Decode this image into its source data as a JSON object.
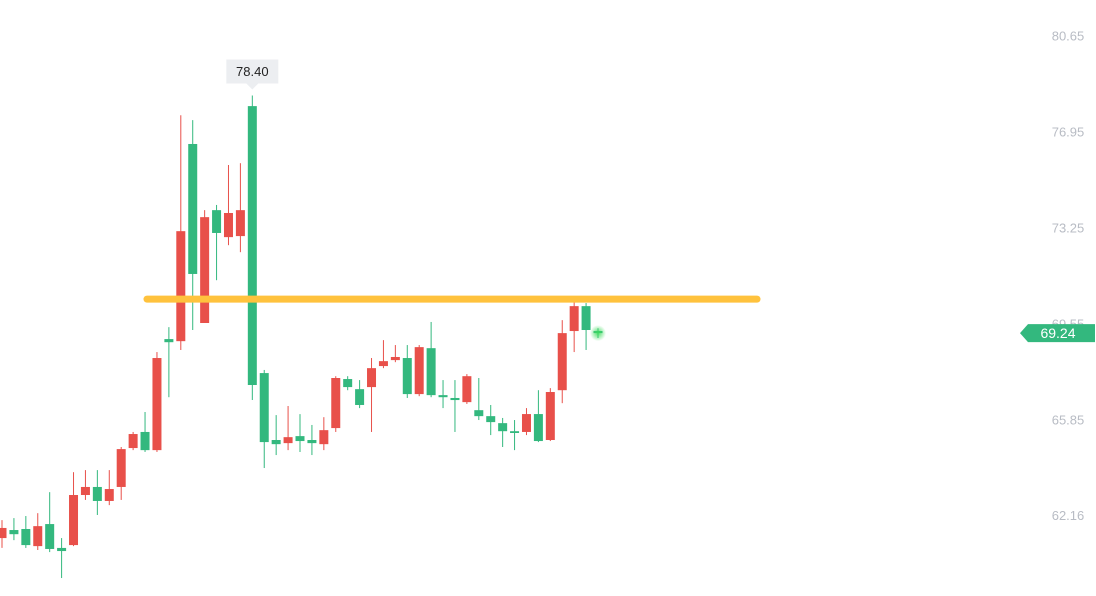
{
  "chart_data": {
    "type": "candlestick",
    "ylim": [
      59.3,
      82.08
    ],
    "yticks": [
      80.65,
      76.95,
      73.25,
      69.55,
      65.85,
      62.16
    ],
    "up_color": "#e8504a",
    "down_color": "#33b87e",
    "open": [
      61.34,
      61.65,
      61.69,
      61.03,
      61.88,
      60.96,
      61.07,
      63.0,
      63.31,
      62.77,
      63.31,
      64.81,
      65.43,
      64.73,
      69.01,
      68.93,
      76.53,
      69.63,
      73.98,
      72.94,
      72.98,
      77.99,
      67.7,
      65.12,
      65.0,
      65.27,
      65.12,
      64.96,
      65.58,
      67.47,
      67.08,
      67.16,
      67.97,
      68.2,
      68.28,
      66.89,
      68.66,
      66.85,
      66.74,
      66.58,
      66.27,
      66.04,
      65.77,
      65.46,
      65.43,
      66.12,
      65.12,
      67.04,
      69.32,
      70.28,
      69.32
    ],
    "high": [
      62.03,
      62.11,
      62.19,
      62.3,
      63.11,
      61.34,
      63.88,
      63.96,
      63.96,
      63.96,
      64.85,
      65.43,
      66.2,
      68.51,
      69.47,
      77.64,
      77.45,
      73.98,
      74.18,
      75.72,
      75.79,
      78.4,
      67.82,
      66.08,
      66.43,
      66.12,
      65.7,
      66.0,
      67.58,
      67.58,
      67.43,
      68.28,
      68.97,
      68.78,
      68.78,
      68.78,
      69.67,
      67.43,
      67.43,
      67.66,
      67.51,
      66.47,
      65.97,
      65.89,
      66.35,
      67.04,
      67.12,
      69.74,
      70.44,
      70.4,
      69.43
    ],
    "low": [
      60.96,
      61.26,
      60.96,
      60.88,
      60.8,
      59.8,
      61.03,
      62.81,
      62.23,
      62.61,
      62.81,
      64.73,
      64.66,
      64.66,
      66.77,
      68.59,
      69.36,
      69.63,
      71.28,
      72.63,
      72.36,
      66.66,
      64.04,
      64.54,
      64.73,
      64.66,
      64.54,
      64.73,
      65.43,
      67.04,
      66.35,
      65.43,
      67.89,
      68.12,
      66.74,
      66.81,
      66.77,
      66.35,
      65.43,
      66.51,
      65.89,
      65.31,
      64.85,
      64.73,
      65.31,
      65.04,
      65.08,
      66.54,
      68.51,
      68.59,
      69.05
    ],
    "close": [
      61.73,
      61.49,
      61.07,
      61.8,
      60.92,
      60.84,
      63.0,
      63.31,
      62.77,
      63.23,
      64.77,
      65.35,
      64.73,
      68.28,
      68.89,
      73.17,
      71.52,
      73.71,
      73.1,
      73.87,
      73.98,
      67.24,
      65.04,
      64.96,
      65.23,
      65.08,
      65.0,
      65.5,
      67.51,
      67.16,
      66.47,
      67.89,
      68.16,
      68.32,
      66.89,
      68.7,
      66.85,
      66.77,
      66.66,
      67.58,
      66.04,
      65.81,
      65.46,
      65.39,
      66.12,
      65.08,
      66.97,
      69.24,
      70.28,
      69.36,
      69.24
    ],
    "annotation": {
      "index": 21,
      "value": 78.4,
      "label": "78.40"
    },
    "level_line": {
      "value": 70.55,
      "color": "#ffc23d"
    },
    "last_price": {
      "value": 69.24,
      "color": "#33b87e"
    }
  }
}
